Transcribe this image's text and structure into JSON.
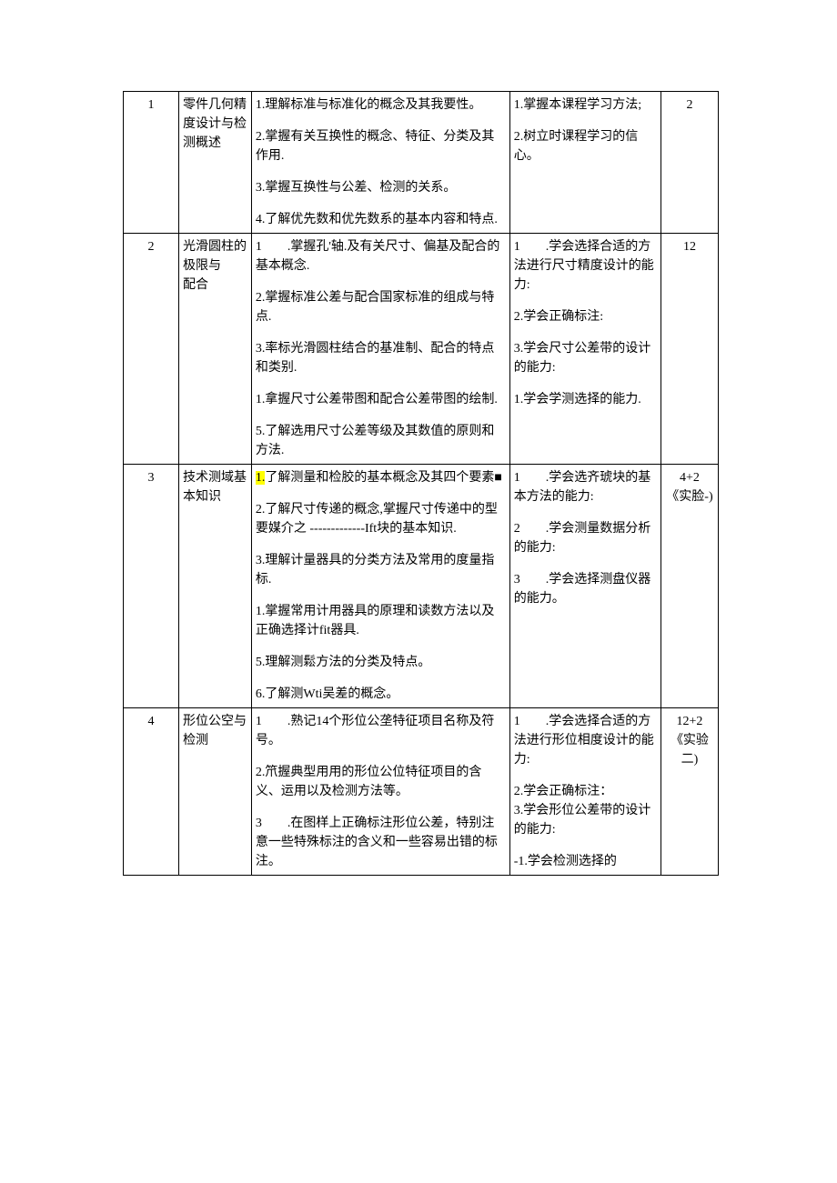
{
  "colors": {
    "border": "#000000",
    "bg": "#ffffff",
    "text": "#000000",
    "highlight": "#ffff00"
  },
  "typography": {
    "font_family": "SimSun",
    "font_size_pt": 10.5,
    "line_height": 1.5
  },
  "columns": {
    "num_w": 58,
    "topic_w": 76,
    "zs_w": 270,
    "nl_w": 158,
    "xs_w": 60
  },
  "rows": [
    {
      "num": "1",
      "topic": "零件几何精度设计与检测概述",
      "zs": [
        "1.理解标准与标准化的概念及其我要性。",
        "2.掌握有关互换性的概念、特征、分类及其作用.",
        "3.掌握互换性与公差、检测的关系。",
        "4.了解优先数和优先数系的基本内容和特点."
      ],
      "nl": [
        "1.掌握本课程学习方法;",
        "2.树立时课程学习的信心。"
      ],
      "xs": "2"
    },
    {
      "num": "2",
      "topic": "光滑圆柱的极限与\n配合",
      "zs": [
        "1　　.掌握孔'轴.及有关尺寸、偏基及配合的基本概念.",
        "2.掌握标准公差与配合国家标准的组成与特点.",
        "3.率标光滑圆柱结合的基准制、配合的特点和类别.",
        "1.拿握尺寸公差带图和配合公差带图的绘制.",
        "5.了解选用尺寸公差等级及其数值的原则和方法."
      ],
      "nl": [
        "1　　.学会选择合适的方法进行尺寸精度设计的能力:",
        "2.学会正确标注:",
        "3.学会尺寸公差带的设计的能力:",
        "1.学会学测选择的能力."
      ],
      "xs": "12"
    },
    {
      "num": "3",
      "topic": "技术测域基本知识",
      "zs_first_hl": "1.",
      "zs_first_rest": "了解测量和检胶的基本概念及其四个要素■",
      "zs_rest": [
        "2.了解尺寸传递的概念,掌握尺寸传递中的型要媒介之 -------------Ift块的基本知识.",
        "3.理解计量器具的分类方法及常用的度量指标.",
        "1.掌握常用计用器具的原理和读数方法以及正确选择计fit器具.",
        "5.理解测鬆方法的分类及特点。",
        "6.了解测Wti吴差的概念。"
      ],
      "nl": [
        "1　　.学会选齐琥块的基本方法的能力:",
        "2　　.学会测量数据分析的能力:",
        "3　　.学会选择测盘仪器的能力。"
      ],
      "xs": "4+2\n《实脸-)"
    },
    {
      "num": "4",
      "topic": "形位公空与检测",
      "zs": [
        "1　　.熟记14个形位公垄特征项目名称及符号。",
        "2.笊握典型用用的形位公位特征项目的含义、运用以及检测方法等。",
        "3　　.在图样上正确标注形位公差，特别注意一些特殊标注的含义和一些容易出错的标注。"
      ],
      "nl": [
        "1　　.学会选择合适的方法进行形位相度设计的能力:",
        "2.学会正确标注：",
        "3.学会形位公差带的设计的能力:",
        "-1.学会检测选择的"
      ],
      "xs": "12+2《实验\n二)"
    }
  ]
}
